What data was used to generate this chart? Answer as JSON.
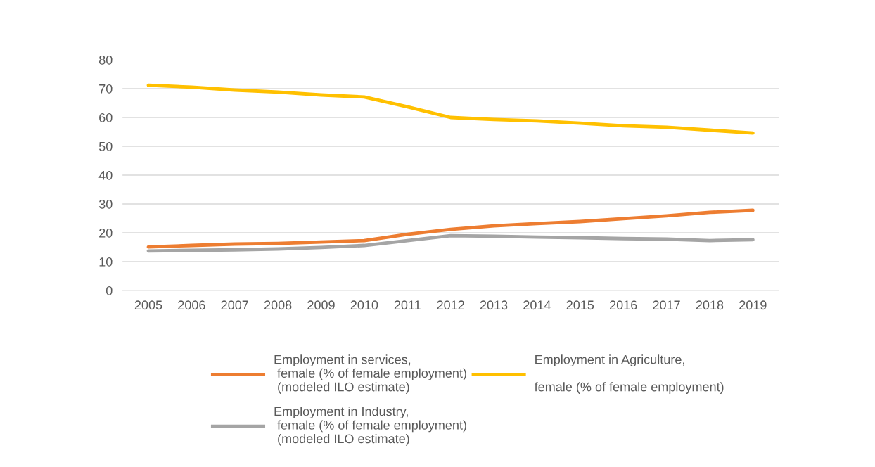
{
  "chart_data": {
    "type": "line",
    "categories": [
      "2005",
      "2006",
      "2007",
      "2008",
      "2009",
      "2010",
      "2011",
      "2012",
      "2013",
      "2014",
      "2015",
      "2016",
      "2017",
      "2018",
      "2019"
    ],
    "series": [
      {
        "name": "Employment in services,\n female (% of female employment)\n (modeled ILO estimate)",
        "color": "#ed7d31",
        "values": [
          15.1,
          15.6,
          16.1,
          16.3,
          16.8,
          17.3,
          19.5,
          21.2,
          22.4,
          23.2,
          23.9,
          24.9,
          25.9,
          27.1,
          27.8
        ]
      },
      {
        "name": "Employment in Industry,\n female (% of female employment)\n (modeled ILO estimate)",
        "color": "#a5a5a5",
        "values": [
          13.7,
          13.9,
          14.1,
          14.4,
          14.9,
          15.6,
          17.3,
          19.0,
          18.8,
          18.5,
          18.3,
          18.0,
          17.8,
          17.3,
          17.6
        ]
      },
      {
        "name": "Employment in Agriculture,\n\nfemale (% of female employment)",
        "color": "#ffc000",
        "values": [
          71.2,
          70.5,
          69.5,
          68.8,
          67.8,
          67.1,
          63.7,
          60.0,
          59.3,
          58.8,
          58.0,
          57.1,
          56.6,
          55.6,
          54.6
        ]
      }
    ],
    "ylim": [
      0,
      80
    ],
    "yticks": [
      0,
      10,
      20,
      30,
      40,
      50,
      60,
      70,
      80
    ],
    "grid": "y",
    "legend": "bottom",
    "marker": "none",
    "line_style": "solid"
  }
}
